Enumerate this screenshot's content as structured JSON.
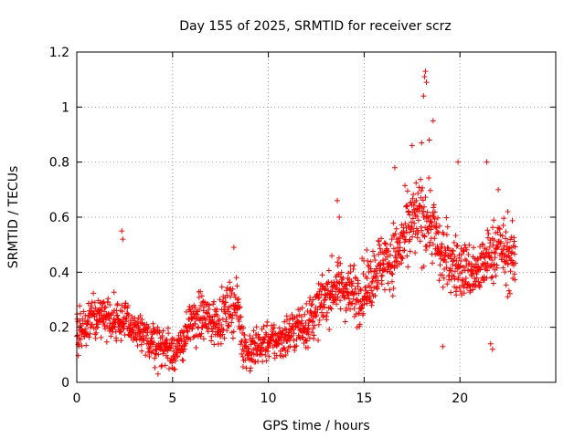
{
  "chart_data": {
    "type": "scatter",
    "title": "Day 155 of 2025, SRMTID for receiver scrz",
    "xlabel": "GPS time / hours",
    "ylabel": "SRMTID / TECUs",
    "xlim": [
      0,
      25
    ],
    "ylim": [
      0,
      1.2
    ],
    "xticks": [
      "0",
      "5",
      "10",
      "15",
      "20"
    ],
    "xtick_values": [
      0,
      5,
      10,
      15,
      20
    ],
    "yticks": [
      "0",
      "0.2",
      "0.4",
      "0.6",
      "0.8",
      "1",
      "1.2"
    ],
    "ytick_values": [
      0,
      0.2,
      0.4,
      0.6,
      0.8,
      1.0,
      1.2
    ],
    "grid": true,
    "marker": "+",
    "color": "#ff0000",
    "series": [
      {
        "name": "SRMTID",
        "x_range": [
          0,
          22.9
        ],
        "trend": [
          [
            0.0,
            0.18
          ],
          [
            0.5,
            0.2
          ],
          [
            1.0,
            0.24
          ],
          [
            1.5,
            0.25
          ],
          [
            2.0,
            0.23
          ],
          [
            2.5,
            0.22
          ],
          [
            3.0,
            0.19
          ],
          [
            3.5,
            0.16
          ],
          [
            4.0,
            0.15
          ],
          [
            4.5,
            0.13
          ],
          [
            5.0,
            0.12
          ],
          [
            5.3,
            0.11
          ],
          [
            5.6,
            0.16
          ],
          [
            6.0,
            0.22
          ],
          [
            6.5,
            0.24
          ],
          [
            7.0,
            0.22
          ],
          [
            7.5,
            0.23
          ],
          [
            8.0,
            0.27
          ],
          [
            8.4,
            0.28
          ],
          [
            8.7,
            0.14
          ],
          [
            9.0,
            0.11
          ],
          [
            9.5,
            0.13
          ],
          [
            10.0,
            0.15
          ],
          [
            10.5,
            0.15
          ],
          [
            11.0,
            0.17
          ],
          [
            11.5,
            0.2
          ],
          [
            12.0,
            0.21
          ],
          [
            12.5,
            0.26
          ],
          [
            13.0,
            0.31
          ],
          [
            13.5,
            0.35
          ],
          [
            14.0,
            0.34
          ],
          [
            14.5,
            0.32
          ],
          [
            15.0,
            0.33
          ],
          [
            15.5,
            0.4
          ],
          [
            16.0,
            0.44
          ],
          [
            16.5,
            0.45
          ],
          [
            17.0,
            0.5
          ],
          [
            17.5,
            0.58
          ],
          [
            18.0,
            0.6
          ],
          [
            18.5,
            0.58
          ],
          [
            19.0,
            0.46
          ],
          [
            19.5,
            0.44
          ],
          [
            20.0,
            0.42
          ],
          [
            20.5,
            0.4
          ],
          [
            21.0,
            0.4
          ],
          [
            21.5,
            0.46
          ],
          [
            22.0,
            0.5
          ],
          [
            22.5,
            0.45
          ],
          [
            22.9,
            0.44
          ]
        ],
        "spread": [
          [
            0.0,
            0.07
          ],
          [
            2.0,
            0.07
          ],
          [
            5.0,
            0.06
          ],
          [
            8.0,
            0.08
          ],
          [
            10.0,
            0.06
          ],
          [
            13.0,
            0.08
          ],
          [
            16.0,
            0.1
          ],
          [
            18.0,
            0.13
          ],
          [
            20.0,
            0.09
          ],
          [
            22.9,
            0.1
          ]
        ],
        "notable_points": [
          [
            2.35,
            0.55
          ],
          [
            2.4,
            0.52
          ],
          [
            8.2,
            0.49
          ],
          [
            13.6,
            0.66
          ],
          [
            13.7,
            0.6
          ],
          [
            16.6,
            0.78
          ],
          [
            17.5,
            0.86
          ],
          [
            18.0,
            0.87
          ],
          [
            18.1,
            1.04
          ],
          [
            18.15,
            1.11
          ],
          [
            18.2,
            1.13
          ],
          [
            18.25,
            1.09
          ],
          [
            18.4,
            0.88
          ],
          [
            18.6,
            0.95
          ],
          [
            19.1,
            0.13
          ],
          [
            19.9,
            0.8
          ],
          [
            21.4,
            0.8
          ],
          [
            21.6,
            0.14
          ],
          [
            21.7,
            0.12
          ],
          [
            22.0,
            0.7
          ],
          [
            22.5,
            0.62
          ]
        ]
      }
    ]
  }
}
